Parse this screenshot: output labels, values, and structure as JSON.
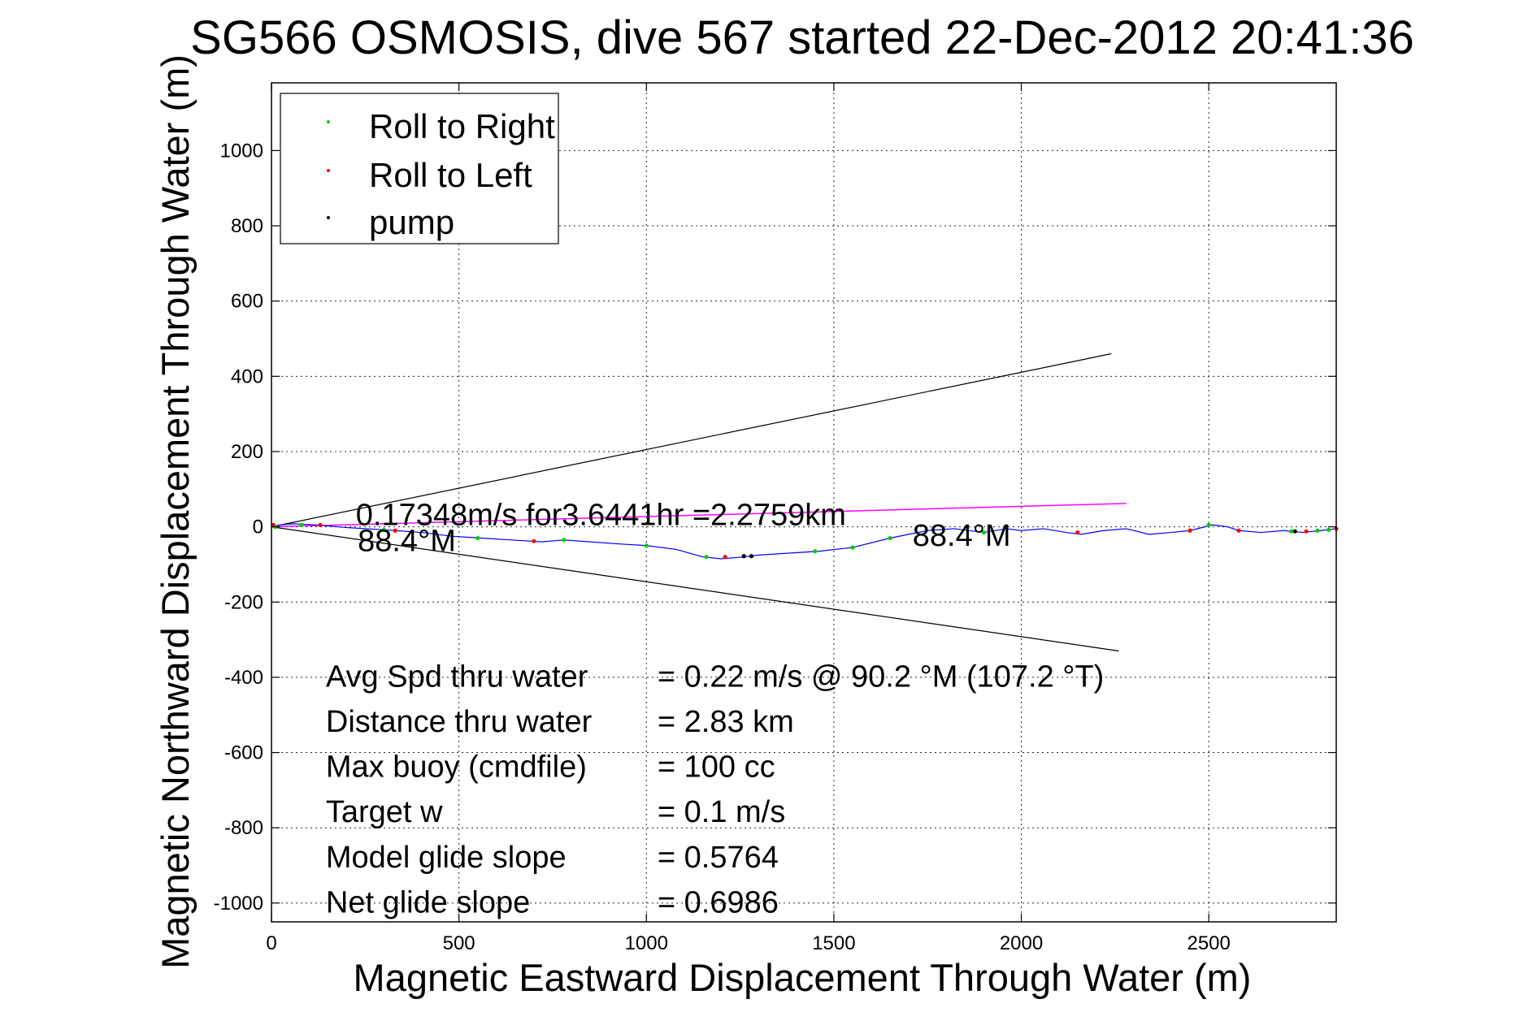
{
  "window": {
    "title": "SG566 OSMOSIS, dive 567 started 22-Dec-2012 20:41:36"
  },
  "chart_data": {
    "type": "line",
    "title": "SG566 OSMOSIS, dive 567 started 22-Dec-2012 20:41:36",
    "xlabel": "Magnetic Eastward Displacement Through Water (m)",
    "ylabel": "Magnetic Northward Displacement Through Water (m)",
    "xlim": [
      0,
      2840
    ],
    "ylim": [
      -1050,
      1180
    ],
    "xticks": [
      0,
      500,
      1000,
      1500,
      2000,
      2500
    ],
    "yticks": [
      -1000,
      -800,
      -600,
      -400,
      -200,
      0,
      200,
      400,
      600,
      800,
      1000
    ],
    "grid": true,
    "legend_position": "top-left",
    "legend": [
      {
        "label": "Roll to Right",
        "color": "#00cc00"
      },
      {
        "label": "Roll to Left",
        "color": "#ff0000"
      },
      {
        "label": "pump",
        "color": "#000000"
      }
    ],
    "track": {
      "color": "#0000ff",
      "x": [
        0,
        20,
        60,
        120,
        200,
        300,
        400,
        480,
        560,
        640,
        720,
        780,
        850,
        920,
        1000,
        1080,
        1150,
        1200,
        1260,
        1300,
        1380,
        1460,
        1550,
        1650,
        1700,
        1750,
        1820,
        1900,
        1960,
        2000,
        2060,
        2120,
        2160,
        2220,
        2280,
        2340,
        2400,
        2450,
        2510,
        2550,
        2580,
        2640,
        2700,
        2750,
        2800,
        2840
      ],
      "y": [
        0,
        5,
        8,
        5,
        -2,
        -8,
        -15,
        -25,
        -30,
        -35,
        -40,
        -35,
        -40,
        -45,
        -50,
        -60,
        -80,
        -85,
        -80,
        -75,
        -70,
        -65,
        -55,
        -30,
        -20,
        -10,
        -5,
        -15,
        -5,
        -10,
        -5,
        -15,
        -20,
        -10,
        -5,
        -20,
        -15,
        -10,
        5,
        0,
        -10,
        -15,
        -10,
        -15,
        -10,
        -5
      ]
    },
    "roll_right_points": {
      "color": "#00cc00",
      "x": [
        10,
        80,
        300,
        550,
        780,
        1000,
        1160,
        1450,
        1550,
        1650,
        1900,
        2500,
        2720,
        2790,
        2820
      ],
      "y": [
        0,
        5,
        -8,
        -30,
        -35,
        -50,
        -80,
        -65,
        -55,
        -30,
        -15,
        5,
        -12,
        -10,
        -8
      ]
    },
    "roll_left_points": {
      "color": "#ff0000",
      "x": [
        5,
        130,
        330,
        700,
        1210,
        2150,
        2450,
        2580,
        2760,
        2840
      ],
      "y": [
        5,
        5,
        -10,
        -38,
        -80,
        -15,
        -10,
        -10,
        -12,
        -5
      ]
    },
    "pump_points": {
      "color": "#000000",
      "x": [
        1260,
        1280,
        2730
      ],
      "y": [
        -78,
        -78,
        -12
      ]
    },
    "heading_line": {
      "color": "#ff00ff",
      "x": [
        0,
        2280
      ],
      "y": [
        0,
        62
      ]
    },
    "envelope_upper": {
      "color": "#000000",
      "x": [
        0,
        2240
      ],
      "y": [
        0,
        460
      ]
    },
    "envelope_lower": {
      "color": "#000000",
      "x": [
        0,
        2260
      ],
      "y": [
        0,
        -330
      ]
    },
    "annotations": [
      {
        "text": "0.17348m/s for3.6441hr =2.2759km",
        "x": 225,
        "y": 5
      },
      {
        "text": "88.4°M",
        "x": 230,
        "y": -65
      },
      {
        "text": "88.4°M",
        "x": 1710,
        "y": -50
      }
    ],
    "stats": [
      {
        "label": "Avg Spd thru water",
        "value": "=  0.22 m/s @  90.2 °M (107.2 °T)",
        "x": 145,
        "y": -425
      },
      {
        "label": "Distance thru water",
        "value": "=  2.83 km",
        "x": 145,
        "y": -545
      },
      {
        "label": "Max buoy (cmdfile)",
        "value": "= 100 cc",
        "x": 145,
        "y": -665
      },
      {
        "label": "Target w",
        "value": "= 0.1 m/s",
        "x": 145,
        "y": -785
      },
      {
        "label": "Model glide slope",
        "value": "= 0.5764",
        "x": 145,
        "y": -905
      },
      {
        "label": "Net glide slope",
        "value": "= 0.6986",
        "x": 145,
        "y": -1025
      }
    ]
  }
}
